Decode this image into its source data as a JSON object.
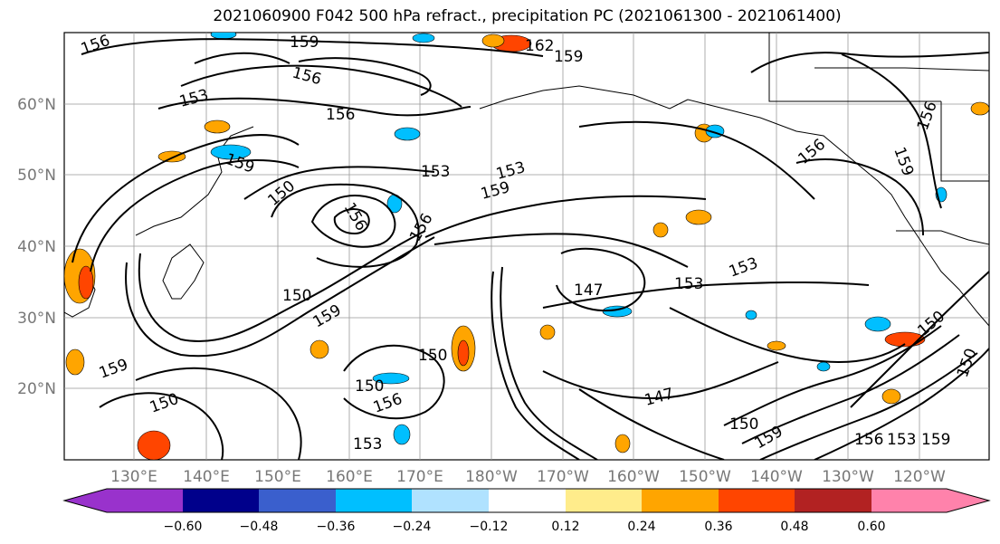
{
  "title": "2021060900 F042 500 hPa refract., precipitation PC (2021061300 - 2021061400)",
  "lat_labels": [
    "60°N",
    "50°N",
    "40°N",
    "30°N",
    "20°N"
  ],
  "lon_labels": [
    "130°E",
    "140°E",
    "150°E",
    "160°E",
    "170°E",
    "180°W",
    "170°W",
    "160°W",
    "150°W",
    "140°W",
    "130°W",
    "120°W"
  ],
  "contour_labels": [
    {
      "id": "c1",
      "text": "156"
    },
    {
      "id": "c2",
      "text": "159"
    },
    {
      "id": "c3",
      "text": "162"
    },
    {
      "id": "c4",
      "text": "159"
    },
    {
      "id": "c5",
      "text": "156"
    },
    {
      "id": "c6",
      "text": "153"
    },
    {
      "id": "c7",
      "text": "156"
    },
    {
      "id": "c8",
      "text": "159"
    },
    {
      "id": "c9",
      "text": "153"
    },
    {
      "id": "c10",
      "text": "150"
    },
    {
      "id": "c11",
      "text": "156"
    },
    {
      "id": "c12",
      "text": "153"
    },
    {
      "id": "c13",
      "text": "159"
    },
    {
      "id": "c14",
      "text": "156"
    },
    {
      "id": "c15",
      "text": "150"
    },
    {
      "id": "c16",
      "text": "159"
    },
    {
      "id": "c17",
      "text": "147"
    },
    {
      "id": "c18",
      "text": "153"
    },
    {
      "id": "c19",
      "text": "153"
    },
    {
      "id": "c20",
      "text": "156"
    },
    {
      "id": "c21",
      "text": "159"
    },
    {
      "id": "c22",
      "text": "150"
    },
    {
      "id": "c23",
      "text": "150"
    },
    {
      "id": "c24",
      "text": "159"
    },
    {
      "id": "c25",
      "text": "147"
    },
    {
      "id": "c26",
      "text": "150"
    },
    {
      "id": "c27",
      "text": "156"
    },
    {
      "id": "c28",
      "text": "153"
    },
    {
      "id": "c29",
      "text": "159"
    },
    {
      "id": "c30",
      "text": "156"
    },
    {
      "id": "c31",
      "text": "150"
    },
    {
      "id": "c32",
      "text": "159"
    },
    {
      "id": "c33",
      "text": "156"
    },
    {
      "id": "c34",
      "text": "150"
    },
    {
      "id": "c35",
      "text": "153"
    },
    {
      "id": "c36",
      "text": "150"
    }
  ],
  "colorbar": {
    "ticks": [
      "−0.60",
      "−0.48",
      "−0.36",
      "−0.24",
      "−0.12",
      "0.12",
      "0.24",
      "0.36",
      "0.48",
      "0.60"
    ],
    "colors": [
      "#9932cc",
      "#00008b",
      "#3a5fcd",
      "#00bfff",
      "#b0e2ff",
      "#ffffff",
      "#ffec8b",
      "#ffa500",
      "#ff4500",
      "#b22222",
      "#ff82ab",
      "#ff82ab"
    ]
  },
  "colors": {
    "contour": "#000000",
    "grid": "#999999",
    "axis_label": "#777777"
  }
}
